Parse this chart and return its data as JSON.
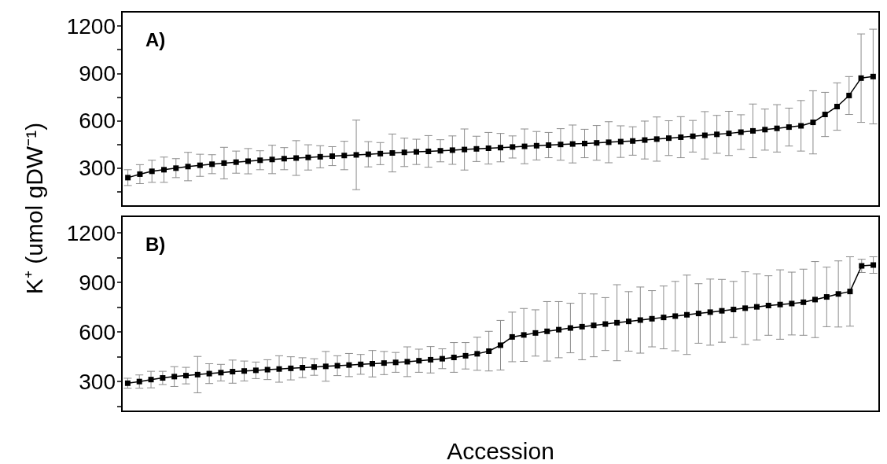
{
  "chart_data": [
    {
      "type": "line",
      "title": "A)",
      "ylabel": "K⁺ (umol gDW⁻¹)",
      "marker": "square",
      "color": "#000000",
      "grid": false,
      "tick_labels": "y",
      "categories": [
        null,
        null,
        null,
        null,
        null,
        null,
        null,
        null,
        null,
        null,
        null,
        null,
        null,
        null,
        null,
        null,
        null,
        null,
        null,
        null,
        null,
        null,
        null,
        null,
        null,
        null,
        null,
        null,
        null,
        null,
        null,
        null,
        null,
        null,
        null,
        null,
        null,
        null,
        null,
        null,
        null,
        null,
        null,
        null,
        null,
        null,
        null,
        null,
        null,
        null,
        null,
        null,
        null,
        null,
        null,
        null,
        null,
        null,
        null,
        null,
        null,
        null,
        null
      ],
      "values": [
        240,
        262,
        280,
        290,
        300,
        310,
        318,
        325,
        332,
        338,
        344,
        350,
        355,
        360,
        364,
        368,
        372,
        376,
        380,
        384,
        388,
        392,
        396,
        400,
        403,
        406,
        410,
        414,
        418,
        422,
        426,
        430,
        434,
        438,
        442,
        446,
        450,
        453,
        456,
        460,
        464,
        468,
        472,
        478,
        484,
        490,
        496,
        502,
        508,
        514,
        520,
        528,
        536,
        544,
        552,
        560,
        568,
        590,
        640,
        690,
        760,
        870,
        880
      ],
      "errors": [
        50,
        60,
        70,
        80,
        60,
        90,
        70,
        60,
        100,
        70,
        80,
        60,
        90,
        70,
        110,
        80,
        70,
        60,
        90,
        220,
        80,
        70,
        120,
        90,
        80,
        100,
        70,
        90,
        130,
        80,
        100,
        90,
        70,
        110,
        90,
        80,
        100,
        120,
        90,
        110,
        130,
        100,
        90,
        120,
        140,
        110,
        130,
        100,
        150,
        120,
        140,
        110,
        170,
        130,
        150,
        120,
        160,
        200,
        140,
        150,
        120,
        280,
        300
      ],
      "ylim": [
        60,
        1290
      ],
      "yticks": [
        {
          "value": 150,
          "label": null
        },
        300,
        {
          "value": 450,
          "label": null
        },
        600,
        {
          "value": 750,
          "label": null
        },
        900,
        {
          "value": 1050,
          "label": null
        },
        1200
      ]
    },
    {
      "type": "line",
      "title": "B)",
      "xlabel": "Accession",
      "marker": "square",
      "color": "#000000",
      "grid": false,
      "tick_labels": "y",
      "categories": [
        null,
        null,
        null,
        null,
        null,
        null,
        null,
        null,
        null,
        null,
        null,
        null,
        null,
        null,
        null,
        null,
        null,
        null,
        null,
        null,
        null,
        null,
        null,
        null,
        null,
        null,
        null,
        null,
        null,
        null,
        null,
        null,
        null,
        null,
        null,
        null,
        null,
        null,
        null,
        null,
        null,
        null,
        null,
        null,
        null,
        null,
        null,
        null,
        null,
        null,
        null,
        null,
        null,
        null,
        null,
        null,
        null,
        null,
        null,
        null,
        null,
        null,
        null,
        null,
        null
      ],
      "values": [
        290,
        300,
        312,
        322,
        330,
        336,
        342,
        348,
        354,
        360,
        364,
        368,
        372,
        376,
        380,
        384,
        388,
        392,
        396,
        400,
        404,
        408,
        412,
        416,
        420,
        426,
        432,
        438,
        446,
        456,
        468,
        484,
        520,
        570,
        582,
        594,
        604,
        614,
        624,
        632,
        640,
        648,
        656,
        664,
        672,
        680,
        688,
        696,
        704,
        712,
        720,
        728,
        736,
        744,
        752,
        760,
        766,
        772,
        780,
        796,
        812,
        830,
        845,
        1000,
        1005
      ],
      "errors": [
        30,
        40,
        50,
        40,
        60,
        50,
        110,
        60,
        50,
        70,
        60,
        50,
        60,
        80,
        70,
        60,
        50,
        90,
        60,
        70,
        60,
        80,
        70,
        60,
        90,
        70,
        80,
        60,
        90,
        80,
        100,
        120,
        150,
        150,
        160,
        140,
        180,
        170,
        150,
        200,
        190,
        160,
        230,
        180,
        200,
        170,
        190,
        210,
        240,
        180,
        200,
        190,
        170,
        220,
        200,
        180,
        210,
        190,
        200,
        230,
        180,
        200,
        210,
        40,
        50
      ],
      "ylim": [
        120,
        1300
      ],
      "yticks": [
        {
          "value": 150,
          "label": null
        },
        300,
        {
          "value": 450,
          "label": null
        },
        600,
        {
          "value": 750,
          "label": null
        },
        900,
        {
          "value": 1050,
          "label": null
        },
        1200
      ]
    }
  ]
}
